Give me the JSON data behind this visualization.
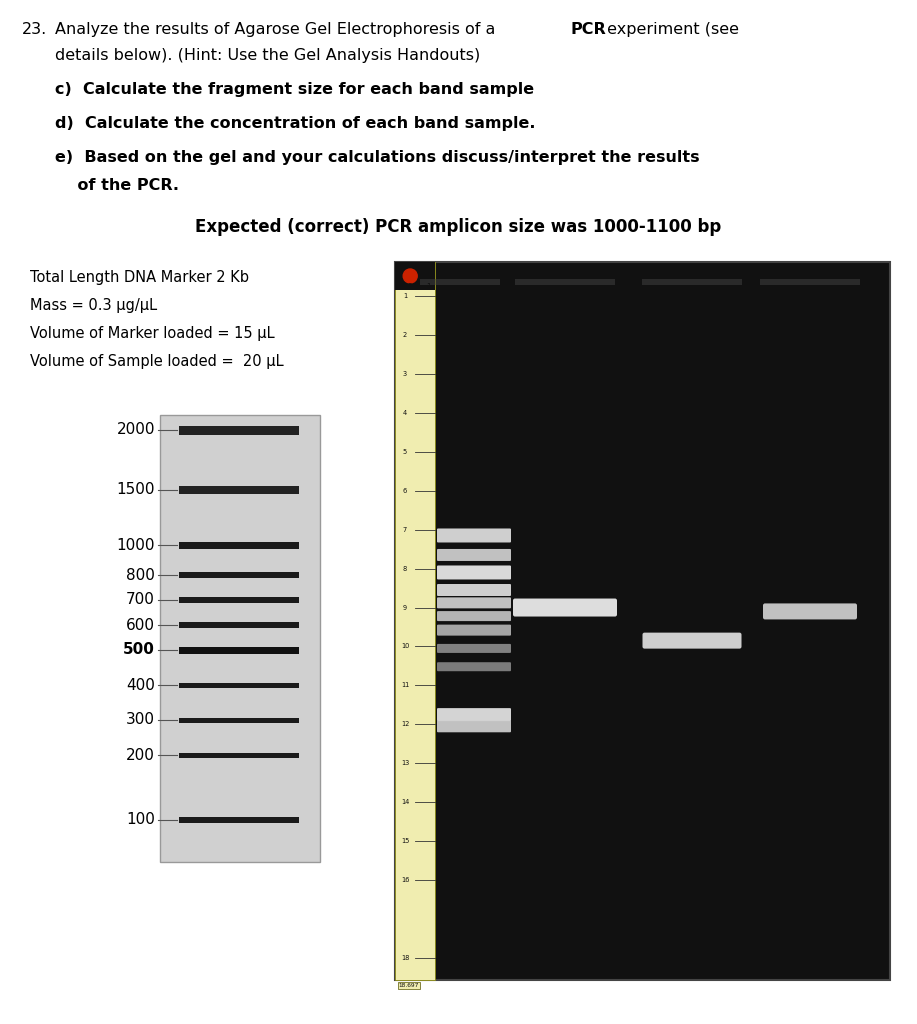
{
  "bg_color": "#ffffff",
  "text_color": "#000000",
  "title_line1_plain": "23.Analyze the results of Agarose Gel Electrophoresis of a ",
  "title_pcr": "PCR",
  "title_line1_end": " experiment (see",
  "title_line2": "   details below). (Hint: Use the Gel Analysis Handouts)",
  "bullet_c": "c)  Calculate the fragment size for each band sample",
  "bullet_d": "d)  Calculate the concentration of each band sample.",
  "bullet_e1": "e)  Based on the gel and your calculations discuss/interpret the results",
  "bullet_e2": "    of the PCR.",
  "center_title": "Expected (correct) PCR amplicon size was 1000-1100 bp",
  "info_line1": "Total Length DNA Marker 2 Kb",
  "info_line2": "Mass = 0.3 μg/μL",
  "info_line3": "Volume of Marker loaded = 15 μL",
  "info_line4": "Volume of Sample loaded =  20 μL",
  "marker_labels": [
    "2000",
    "1500",
    "1000",
    "800",
    "700",
    "600",
    "500",
    "400",
    "300",
    "200",
    "100"
  ],
  "marker_bold": [
    "500"
  ],
  "font_size_main": 11.5,
  "font_size_info": 10.5,
  "font_size_marker": 11,
  "gel_bg": "#111111",
  "ruler_bg": "#f0edb0",
  "ruler_border": "#888800",
  "band_colors_gel": [
    "#cccccc",
    "#aaaaaa",
    "#dddddd",
    "#cccccc",
    "#bbbbbb",
    "#aaaaaa",
    "#999999",
    "#888888",
    "#888888",
    "#cccccc",
    "#bbbbbb"
  ],
  "sample_band_color1": "#eeeeee",
  "sample_band_color2": "#dddddd",
  "sample_band_color3": "#cccccc",
  "schematic_box_color": "#d0d0d0",
  "schematic_band_colors": [
    "#222222",
    "#222222",
    "#1a1a1a",
    "#1a1a1a",
    "#1a1a1a",
    "#1a1a1a",
    "#111111",
    "#1a1a1a",
    "#1a1a1a",
    "#1a1a1a",
    "#1a1a1a"
  ]
}
